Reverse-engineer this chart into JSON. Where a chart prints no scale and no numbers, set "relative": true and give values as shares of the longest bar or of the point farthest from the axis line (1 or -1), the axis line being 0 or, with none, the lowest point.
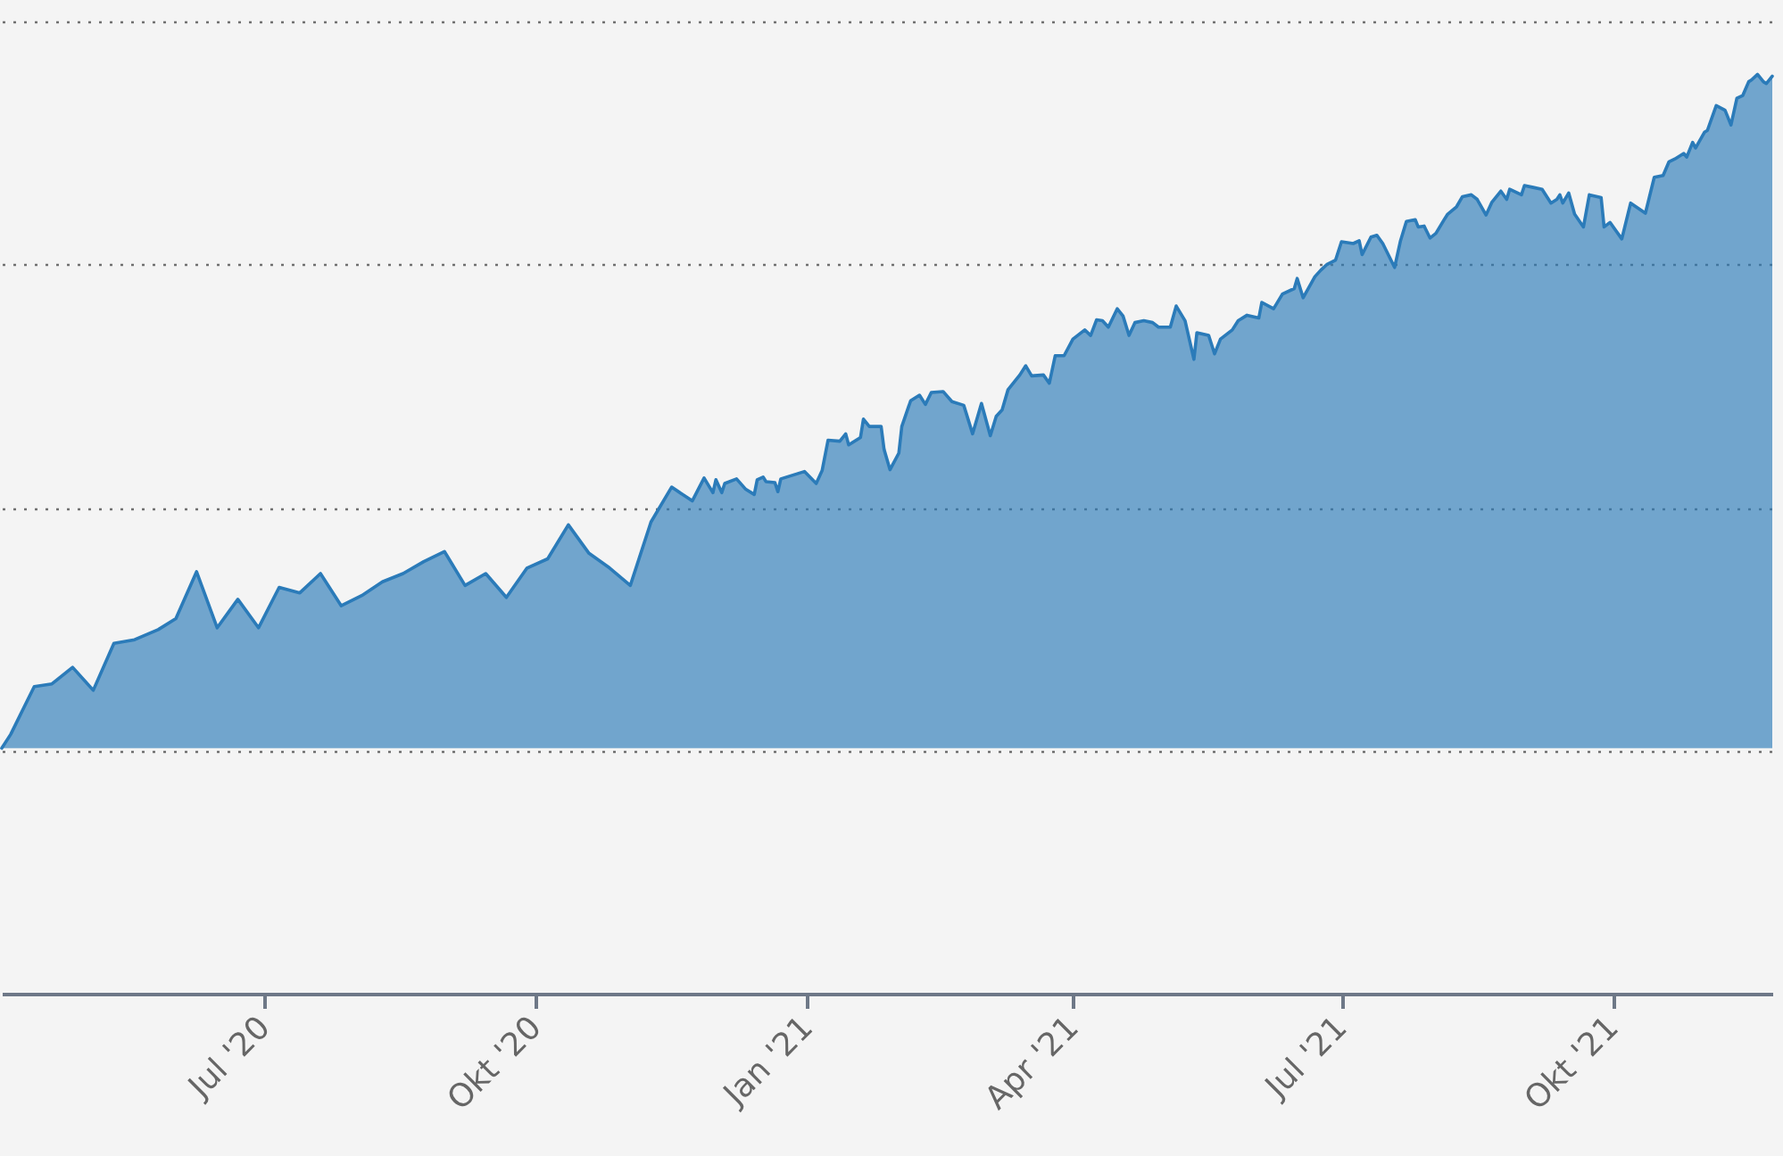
{
  "chart_data": {
    "type": "area",
    "relative": true,
    "color": "#2b7bb9",
    "grid": "y",
    "xlim": [
      "2020-04-03",
      "2021-11-24"
    ],
    "xticks": [
      {
        "value": "2020-07-01",
        "label": "Jul '20"
      },
      {
        "value": "2020-10-01",
        "label": "Okt '20"
      },
      {
        "value": "2021-01-01",
        "label": "Jan '21"
      },
      {
        "value": "2021-04-01",
        "label": "Apr '21"
      },
      {
        "value": "2021-07-01",
        "label": "Jul '21"
      },
      {
        "value": "2021-10-01",
        "label": "Okt '21"
      }
    ],
    "x": [
      "2020-04-03",
      "2020-04-06",
      "2020-04-14",
      "2020-04-20",
      "2020-04-27",
      "2020-05-04",
      "2020-05-11",
      "2020-05-18",
      "2020-05-26",
      "2020-06-01",
      "2020-06-08",
      "2020-06-15",
      "2020-06-22",
      "2020-06-29",
      "2020-07-06",
      "2020-07-13",
      "2020-07-20",
      "2020-07-27",
      "2020-08-03",
      "2020-08-10",
      "2020-08-17",
      "2020-08-24",
      "2020-08-31",
      "2020-09-07",
      "2020-09-14",
      "2020-09-21",
      "2020-09-28",
      "2020-10-05",
      "2020-10-12",
      "2020-10-19",
      "2020-10-26",
      "2020-11-02",
      "2020-11-09",
      "2020-11-16",
      "2020-11-23",
      "2020-11-27",
      "2020-11-30",
      "2020-12-01",
      "2020-12-03",
      "2020-12-04",
      "2020-12-08",
      "2020-12-11",
      "2020-12-14",
      "2020-12-15",
      "2020-12-17",
      "2020-12-18",
      "2020-12-21",
      "2020-12-22",
      "2020-12-23",
      "2020-12-31",
      "2021-01-04",
      "2021-01-06",
      "2021-01-08",
      "2021-01-12",
      "2021-01-14",
      "2021-01-15",
      "2021-01-19",
      "2021-01-20",
      "2021-01-22",
      "2021-01-26",
      "2021-01-27",
      "2021-01-29",
      "2021-02-01",
      "2021-02-02",
      "2021-02-05",
      "2021-02-08",
      "2021-02-10",
      "2021-02-12",
      "2021-02-16",
      "2021-02-19",
      "2021-02-23",
      "2021-02-26",
      "2021-03-01",
      "2021-03-04",
      "2021-03-06",
      "2021-03-08",
      "2021-03-10",
      "2021-03-14",
      "2021-03-16",
      "2021-03-18",
      "2021-03-22",
      "2021-03-24",
      "2021-03-26",
      "2021-03-29",
      "2021-04-01",
      "2021-04-05",
      "2021-04-07",
      "2021-04-09",
      "2021-04-11",
      "2021-04-13",
      "2021-04-16",
      "2021-04-18",
      "2021-04-20",
      "2021-04-22",
      "2021-04-25",
      "2021-04-28",
      "2021-04-30",
      "2021-05-04",
      "2021-05-06",
      "2021-05-09",
      "2021-05-12",
      "2021-05-13",
      "2021-05-17",
      "2021-05-19",
      "2021-05-21",
      "2021-05-25",
      "2021-05-27",
      "2021-05-30",
      "2021-06-03",
      "2021-06-04",
      "2021-06-08",
      "2021-06-11",
      "2021-06-15",
      "2021-06-16",
      "2021-06-18",
      "2021-06-22",
      "2021-06-24",
      "2021-06-26",
      "2021-06-29",
      "2021-07-01",
      "2021-07-05",
      "2021-07-07",
      "2021-07-08",
      "2021-07-11",
      "2021-07-13",
      "2021-07-15",
      "2021-07-19",
      "2021-07-21",
      "2021-07-23",
      "2021-07-26",
      "2021-07-27",
      "2021-07-29",
      "2021-07-31",
      "2021-08-02",
      "2021-08-05",
      "2021-08-06",
      "2021-08-09",
      "2021-08-11",
      "2021-08-14",
      "2021-08-16",
      "2021-08-19",
      "2021-08-21",
      "2021-08-24",
      "2021-08-26",
      "2021-08-27",
      "2021-08-31",
      "2021-09-01",
      "2021-09-04",
      "2021-09-07",
      "2021-09-10",
      "2021-09-12",
      "2021-09-13",
      "2021-09-14",
      "2021-09-16",
      "2021-09-18",
      "2021-09-21",
      "2021-09-23",
      "2021-09-27",
      "2021-09-28",
      "2021-09-30",
      "2021-10-04",
      "2021-10-07",
      "2021-10-12",
      "2021-10-15",
      "2021-10-18",
      "2021-10-20",
      "2021-10-22",
      "2021-10-25",
      "2021-10-26",
      "2021-10-28",
      "2021-10-29",
      "2021-11-01",
      "2021-11-02",
      "2021-11-05",
      "2021-11-08",
      "2021-11-10",
      "2021-11-12",
      "2021-11-14",
      "2021-11-16",
      "2021-11-17",
      "2021-11-19",
      "2021-11-21",
      "2021-11-22",
      "2021-11-24"
    ],
    "values": [
      0.267,
      0.282,
      0.334,
      0.337,
      0.355,
      0.33,
      0.381,
      0.385,
      0.396,
      0.408,
      0.459,
      0.398,
      0.429,
      0.398,
      0.442,
      0.436,
      0.457,
      0.422,
      0.433,
      0.448,
      0.457,
      0.47,
      0.481,
      0.444,
      0.457,
      0.431,
      0.463,
      0.473,
      0.51,
      0.479,
      0.463,
      0.444,
      0.513,
      0.551,
      0.536,
      0.561,
      0.545,
      0.559,
      0.545,
      0.555,
      0.56,
      0.549,
      0.543,
      0.559,
      0.562,
      0.557,
      0.556,
      0.546,
      0.56,
      0.568,
      0.555,
      0.569,
      0.602,
      0.601,
      0.609,
      0.597,
      0.605,
      0.625,
      0.617,
      0.617,
      0.592,
      0.57,
      0.588,
      0.617,
      0.645,
      0.651,
      0.641,
      0.654,
      0.655,
      0.644,
      0.64,
      0.609,
      0.642,
      0.607,
      0.628,
      0.635,
      0.657,
      0.673,
      0.683,
      0.672,
      0.673,
      0.664,
      0.694,
      0.694,
      0.712,
      0.722,
      0.716,
      0.733,
      0.732,
      0.725,
      0.745,
      0.737,
      0.716,
      0.73,
      0.732,
      0.73,
      0.725,
      0.725,
      0.748,
      0.732,
      0.69,
      0.719,
      0.716,
      0.696,
      0.712,
      0.722,
      0.732,
      0.738,
      0.735,
      0.752,
      0.745,
      0.761,
      0.767,
      0.778,
      0.757,
      0.78,
      0.787,
      0.793,
      0.798,
      0.818,
      0.816,
      0.819,
      0.804,
      0.823,
      0.825,
      0.816,
      0.79,
      0.819,
      0.84,
      0.842,
      0.834,
      0.835,
      0.822,
      0.827,
      0.843,
      0.848,
      0.856,
      0.867,
      0.869,
      0.864,
      0.847,
      0.861,
      0.873,
      0.864,
      0.875,
      0.869,
      0.879,
      0.877,
      0.875,
      0.86,
      0.864,
      0.869,
      0.86,
      0.871,
      0.848,
      0.834,
      0.869,
      0.866,
      0.834,
      0.839,
      0.821,
      0.86,
      0.849,
      0.888,
      0.89,
      0.905,
      0.908,
      0.914,
      0.91,
      0.926,
      0.92,
      0.937,
      0.939,
      0.966,
      0.961,
      0.945,
      0.974,
      0.977,
      0.992,
      0.994,
      1.0,
      0.992,
      0.99,
      0.998
    ]
  }
}
